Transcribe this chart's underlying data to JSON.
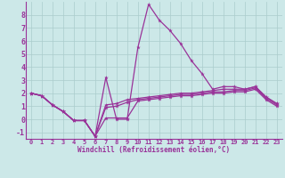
{
  "background_color": "#cce8e8",
  "grid_color": "#aacccc",
  "line_color": "#993399",
  "xlim": [
    -0.5,
    23.5
  ],
  "ylim": [
    -1.5,
    9.0
  ],
  "xtick_labels": [
    "0",
    "1",
    "2",
    "3",
    "4",
    "5",
    "6",
    "7",
    "8",
    "9",
    "10",
    "11",
    "12",
    "13",
    "14",
    "15",
    "16",
    "17",
    "18",
    "19",
    "20",
    "21",
    "22",
    "23"
  ],
  "xtick_positions": [
    0,
    1,
    2,
    3,
    4,
    5,
    6,
    7,
    8,
    9,
    10,
    11,
    12,
    13,
    14,
    15,
    16,
    17,
    18,
    19,
    20,
    21,
    22,
    23
  ],
  "yticks": [
    -1,
    0,
    1,
    2,
    3,
    4,
    5,
    6,
    7,
    8
  ],
  "xlabel": "Windchill (Refroidissement éolien,°C)",
  "series1_x": [
    0,
    1,
    2,
    3,
    4,
    5,
    6,
    7,
    8,
    9,
    10,
    11,
    12,
    13,
    14,
    15,
    16,
    17,
    18,
    19,
    20,
    21,
    22,
    23
  ],
  "series1_y": [
    2.0,
    1.8,
    1.1,
    0.6,
    -0.1,
    -0.1,
    -1.3,
    3.2,
    0.0,
    0.0,
    5.5,
    8.8,
    7.6,
    6.8,
    5.8,
    4.5,
    3.5,
    2.3,
    2.5,
    2.5,
    2.3,
    2.5,
    1.7,
    1.2
  ],
  "series2_x": [
    0,
    1,
    2,
    3,
    4,
    5,
    6,
    7,
    8,
    9,
    10,
    11,
    12,
    13,
    14,
    15,
    16,
    17,
    18,
    19,
    20,
    21,
    22,
    23
  ],
  "series2_y": [
    2.0,
    1.8,
    1.1,
    0.6,
    -0.1,
    -0.1,
    -1.3,
    1.1,
    1.2,
    1.5,
    1.6,
    1.7,
    1.8,
    1.9,
    2.0,
    2.0,
    2.1,
    2.2,
    2.3,
    2.3,
    2.3,
    2.5,
    1.7,
    1.2
  ],
  "series3_x": [
    0,
    1,
    2,
    3,
    4,
    5,
    6,
    7,
    8,
    9,
    10,
    11,
    12,
    13,
    14,
    15,
    16,
    17,
    18,
    19,
    20,
    21,
    22,
    23
  ],
  "series3_y": [
    2.0,
    1.8,
    1.1,
    0.6,
    -0.1,
    -0.1,
    -1.3,
    0.9,
    1.0,
    1.3,
    1.5,
    1.6,
    1.7,
    1.8,
    1.9,
    1.9,
    2.0,
    2.1,
    2.1,
    2.2,
    2.2,
    2.4,
    1.6,
    1.1
  ],
  "series4_x": [
    0,
    1,
    2,
    3,
    4,
    5,
    6,
    7,
    8,
    9,
    10,
    11,
    12,
    13,
    14,
    15,
    16,
    17,
    18,
    19,
    20,
    21,
    22,
    23
  ],
  "series4_y": [
    2.0,
    1.8,
    1.1,
    0.6,
    -0.1,
    -0.1,
    -1.3,
    0.1,
    0.1,
    0.1,
    1.4,
    1.5,
    1.6,
    1.7,
    1.8,
    1.8,
    1.9,
    2.0,
    2.0,
    2.1,
    2.1,
    2.3,
    1.5,
    1.0
  ]
}
